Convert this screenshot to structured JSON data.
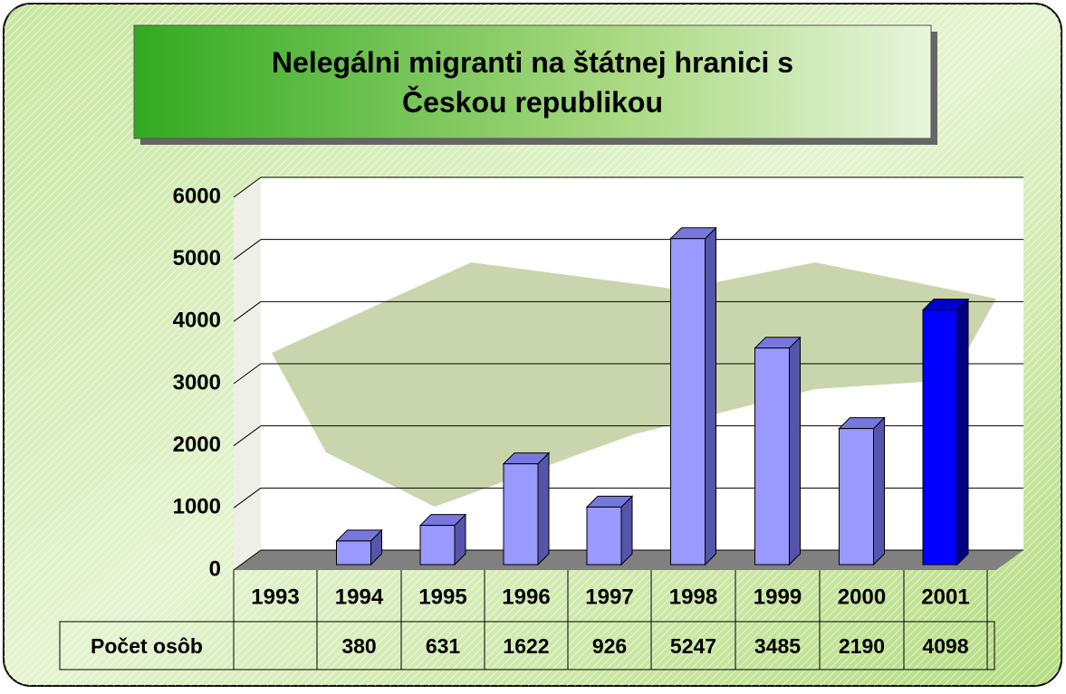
{
  "chart_data": {
    "type": "bar3d",
    "title": "Nelegálni migranti na štátnej hranici s Českou republikou",
    "categories": [
      "1993",
      "1994",
      "1995",
      "1996",
      "1997",
      "1998",
      "1999",
      "2000",
      "2001"
    ],
    "series": [
      {
        "name": "Počet osôb",
        "colors": [
          "#9999ff",
          "#9999ff",
          "#9999ff",
          "#9999ff",
          "#9999ff",
          "#9999ff",
          "#9999ff",
          "#9999ff",
          "#0000ff"
        ],
        "values": [
          null,
          380,
          631,
          1622,
          926,
          5247,
          3485,
          2190,
          4098
        ]
      }
    ],
    "ylim": [
      0,
      6000
    ],
    "yticks": [
      0,
      1000,
      2000,
      3000,
      4000,
      5000,
      6000
    ],
    "grid": true,
    "data_table": true
  }
}
